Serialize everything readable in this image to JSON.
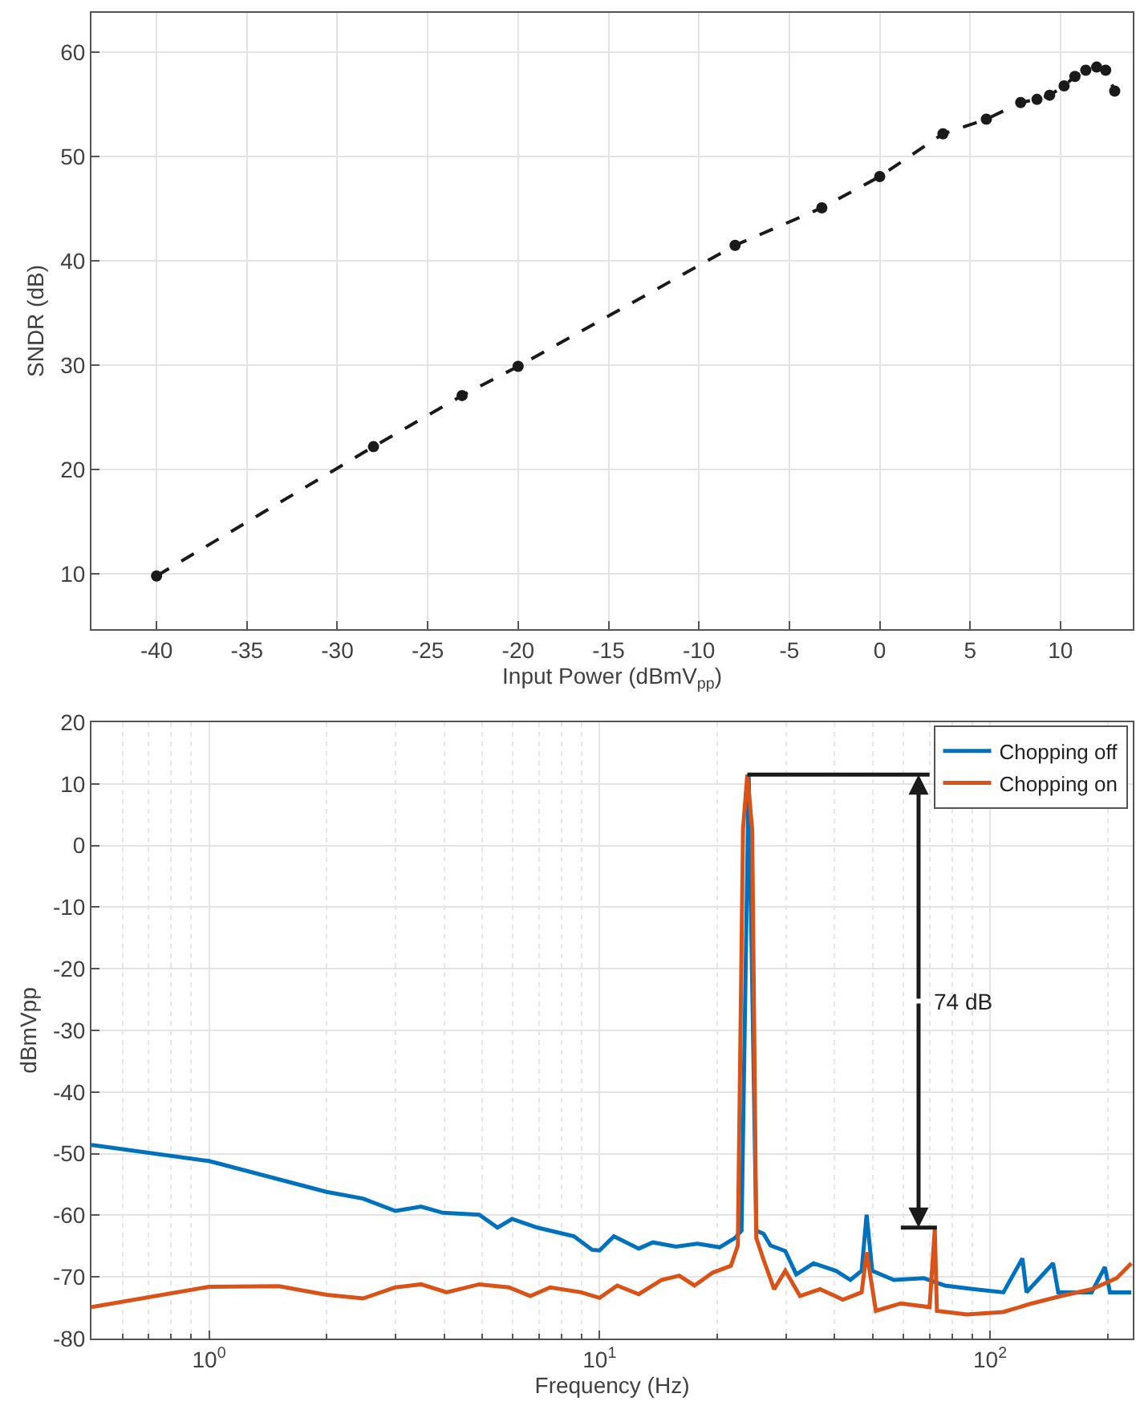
{
  "chart_data": [
    {
      "type": "line",
      "xlabel": "Input Power (dBmV$_{pp}$)",
      "ylabel": "SNDR (dB)",
      "xlim": [
        -43.6,
        14
      ],
      "ylim": [
        4.7,
        63.8
      ],
      "xticks": [
        -40,
        -35,
        -30,
        -25,
        -20,
        -15,
        -10,
        -5,
        0,
        5,
        10
      ],
      "yticks": [
        10,
        20,
        30,
        40,
        50,
        60
      ],
      "grid": true,
      "legend": false,
      "marker": "circle",
      "line_style": "dashed",
      "x": [
        -40,
        -28,
        -23.1,
        -20,
        -8,
        -3.2,
        0,
        3.5,
        5.9,
        7.8,
        8.7,
        9.4,
        10.2,
        10.8,
        11.4,
        12.0,
        12.5,
        13.0
      ],
      "series": [
        {
          "color": "#1a1a1a",
          "values": [
            9.8,
            22.2,
            27.1,
            29.9,
            41.5,
            45.1,
            48.1,
            52.2,
            53.6,
            55.2,
            55.5,
            55.9,
            56.8,
            57.7,
            58.3,
            58.6,
            58.3,
            56.3
          ]
        }
      ]
    },
    {
      "type": "line",
      "xlabel": "Frequency (Hz)",
      "ylabel": "dBmVpp",
      "log": "x",
      "xlim": [
        0.5,
        232
      ],
      "ylim": [
        -80,
        20
      ],
      "xticks": [
        {
          "value": 1,
          "label": "10$^{0}$"
        },
        {
          "value": 10,
          "label": "10$^{1}$"
        },
        {
          "value": 100,
          "label": "10$^{2}$"
        }
      ],
      "yticks": [
        -80,
        -70,
        -60,
        -50,
        -40,
        -30,
        -20,
        -10,
        0,
        10,
        20
      ],
      "grid": true,
      "legend": "top right",
      "line_style": "solid",
      "annotations": [
        {
          "text": "74 dB",
          "x": 65.6,
          "y": -62
        }
      ],
      "series": [
        {
          "name": "Chopping off",
          "color": "#0072bd",
          "x": [
            0.5,
            1.0,
            2.0,
            2.48,
            3.0,
            3.49,
            3.97,
            4.92,
            5.48,
            5.97,
            6.93,
            8.6,
            9.57,
            10,
            10.88,
            12.6,
            13.7,
            15.7,
            17.8,
            20.3,
            22.2,
            23.1,
            24.1,
            25.2,
            26.3,
            27.4,
            29.9,
            31.9,
            35.3,
            40.3,
            43.9,
            46.9,
            48.3,
            49.9,
            56.7,
            67.6,
            76.6,
            91.0,
            108.2,
            121.0,
            124,
            145,
            149.5,
            182,
            196.8,
            202.8,
            230
          ],
          "values": [
            -48.6,
            -51.2,
            -56.2,
            -57.3,
            -59.3,
            -58.6,
            -59.6,
            -59.9,
            -62,
            -60.6,
            -62,
            -63.4,
            -65.6,
            -65.7,
            -63.4,
            -65.4,
            -64.4,
            -65.1,
            -64.6,
            -65.2,
            -63.7,
            -62.5,
            11.5,
            -62.5,
            -63,
            -64.9,
            -65.8,
            -69.6,
            -67.8,
            -69,
            -70.5,
            -69,
            -59.9,
            -69,
            -70.5,
            -70.2,
            -71.4,
            -72,
            -72.5,
            -67,
            -72.5,
            -67.8,
            -72.5,
            -72.5,
            -68.4,
            -72.5,
            -72.5
          ]
        },
        {
          "name": "Chopping on",
          "color": "#d95319",
          "x": [
            0.5,
            1.0,
            1.51,
            2.0,
            2.48,
            3.0,
            3.49,
            4.06,
            4.92,
            5.86,
            6.65,
            7.48,
            8.97,
            10,
            11.1,
            12.6,
            14.4,
            16.0,
            17.5,
            19.5,
            21.7,
            22.6,
            23.3,
            23.9,
            24.6,
            25.2,
            26.3,
            28,
            29.9,
            32.6,
            36.7,
            42,
            46.9,
            48.3,
            51,
            59.1,
            70.0,
            72.2,
            73.1,
            87.2,
            108,
            128,
            152,
            182,
            211,
            230
          ],
          "values": [
            -74.9,
            -71.6,
            -71.5,
            -72.9,
            -73.5,
            -71.7,
            -71.2,
            -72.5,
            -71.2,
            -71.7,
            -73.1,
            -71.7,
            -72.5,
            -73.4,
            -71.4,
            -72.8,
            -70.5,
            -69.8,
            -71.4,
            -69.3,
            -68.2,
            -64.9,
            2.6,
            11.5,
            2.6,
            -63.7,
            -67.2,
            -72,
            -69,
            -73.1,
            -72,
            -73.7,
            -72.5,
            -66,
            -75.5,
            -74.3,
            -74.9,
            -62.2,
            -75.5,
            -76.1,
            -75.7,
            -74.3,
            -73.1,
            -72,
            -70.2,
            -67.8
          ]
        },
        {
          "color": "#1a1a1a",
          "x": [
            23.9,
            70
          ],
          "values": [
            11.5,
            11.5
          ]
        },
        {
          "color": "#1a1a1a",
          "x": [
            59.1,
            73.1
          ],
          "values": [
            -62,
            -62
          ]
        }
      ]
    }
  ]
}
